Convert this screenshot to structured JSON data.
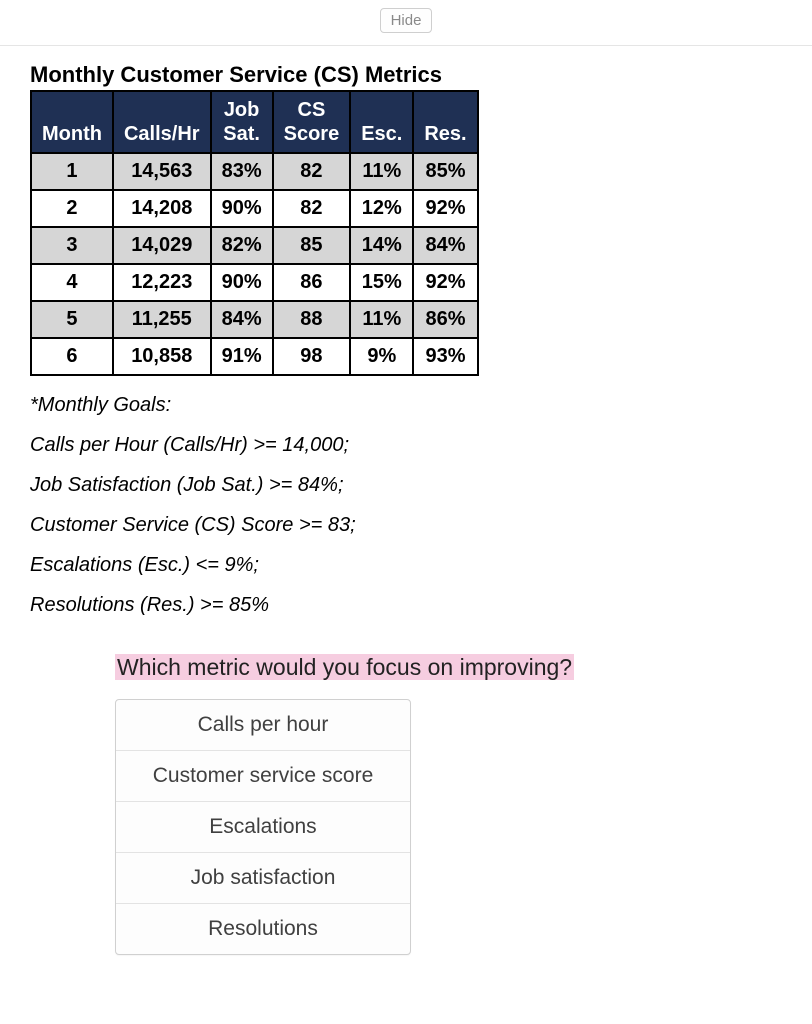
{
  "hide_button": {
    "label": "Hide"
  },
  "table": {
    "title": "Monthly Customer Service (CS) Metrics",
    "header_bg": "#1f3054",
    "header_fg": "#ffffff",
    "row_odd_bg": "#d6d6d6",
    "row_even_bg": "#ffffff",
    "border_color": "#000000",
    "columns": [
      {
        "label_line1": "",
        "label_line2": "Month"
      },
      {
        "label_line1": "",
        "label_line2": "Calls/Hr"
      },
      {
        "label_line1": "Job",
        "label_line2": "Sat."
      },
      {
        "label_line1": "CS",
        "label_line2": "Score"
      },
      {
        "label_line1": "",
        "label_line2": "Esc."
      },
      {
        "label_line1": "",
        "label_line2": "Res."
      }
    ],
    "rows": [
      {
        "month": "1",
        "calls_hr": "14,563",
        "job_sat": "83%",
        "cs_score": "82",
        "esc": "11%",
        "res": "85%"
      },
      {
        "month": "2",
        "calls_hr": "14,208",
        "job_sat": "90%",
        "cs_score": "82",
        "esc": "12%",
        "res": "92%"
      },
      {
        "month": "3",
        "calls_hr": "14,029",
        "job_sat": "82%",
        "cs_score": "85",
        "esc": "14%",
        "res": "84%"
      },
      {
        "month": "4",
        "calls_hr": "12,223",
        "job_sat": "90%",
        "cs_score": "86",
        "esc": "15%",
        "res": "92%"
      },
      {
        "month": "5",
        "calls_hr": "11,255",
        "job_sat": "84%",
        "cs_score": "88",
        "esc": "11%",
        "res": "86%"
      },
      {
        "month": "6",
        "calls_hr": "10,858",
        "job_sat": "91%",
        "cs_score": "98",
        "esc": "9%",
        "res": "93%"
      }
    ]
  },
  "goals": {
    "heading": "*Monthly Goals:",
    "lines": [
      "Calls per Hour (Calls/Hr) >= 14,000;",
      "Job Satisfaction (Job Sat.) >= 84%;",
      "Customer Service (CS) Score >= 83;",
      "Escalations (Esc.) <= 9%;",
      "Resolutions (Res.) >= 85%"
    ]
  },
  "question": {
    "text": "Which metric would you focus on improving?",
    "highlight_bg": "#f6cde0",
    "options": [
      "Calls per hour",
      "Customer service score",
      "Escalations",
      "Job satisfaction",
      "Resolutions"
    ]
  }
}
